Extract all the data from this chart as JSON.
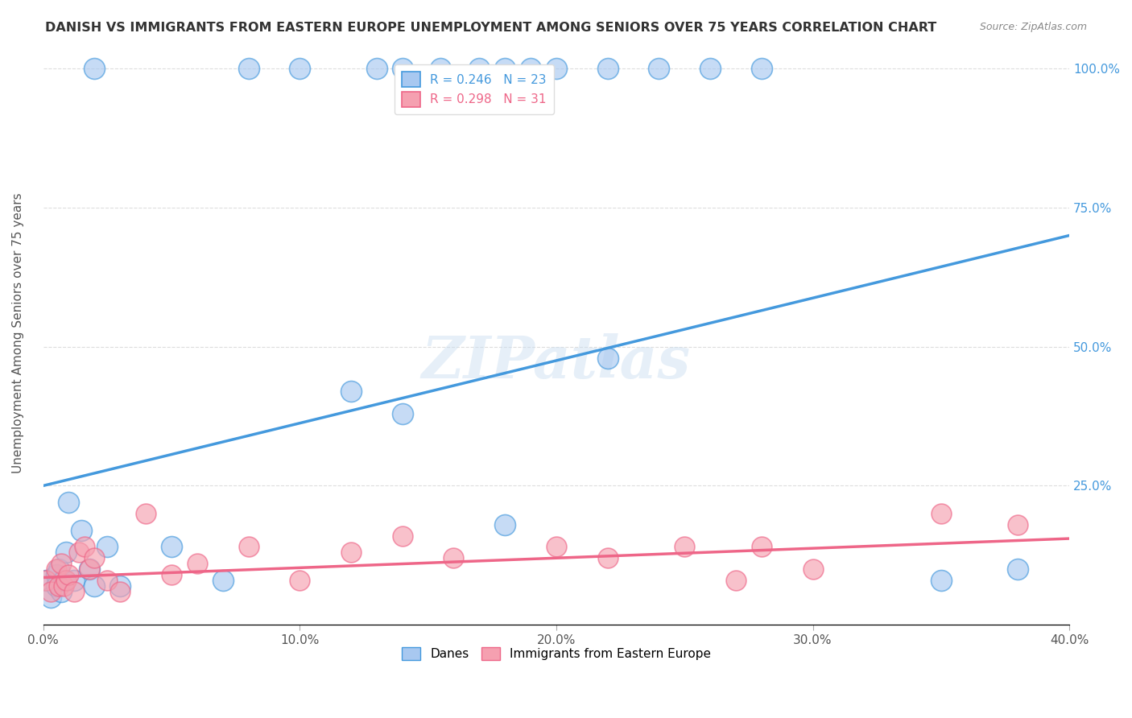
{
  "title": "DANISH VS IMMIGRANTS FROM EASTERN EUROPE UNEMPLOYMENT AMONG SENIORS OVER 75 YEARS CORRELATION CHART",
  "source": "Source: ZipAtlas.com",
  "ylabel": "Unemployment Among Seniors over 75 years",
  "x_ticks": [
    0.0,
    0.1,
    0.2,
    0.3,
    0.4
  ],
  "x_tick_labels": [
    "0.0%",
    "10.0%",
    "20.0%",
    "30.0%",
    "40.0%"
  ],
  "y_ticks": [
    0.0,
    0.25,
    0.5,
    0.75,
    1.0
  ],
  "y_tick_labels_right": [
    "",
    "25.0%",
    "50.0%",
    "75.0%",
    "100.0%"
  ],
  "xlim": [
    0.0,
    0.4
  ],
  "ylim": [
    0.0,
    1.05
  ],
  "danes_R": 0.246,
  "danes_N": 23,
  "immigrants_R": 0.298,
  "immigrants_N": 31,
  "danes_color": "#a8c8f0",
  "danes_line_color": "#4499dd",
  "immigrants_color": "#f5a0b0",
  "immigrants_line_color": "#ee6688",
  "danes_x": [
    0.001,
    0.003,
    0.005,
    0.005,
    0.006,
    0.007,
    0.008,
    0.009,
    0.01,
    0.012,
    0.015,
    0.018,
    0.02,
    0.025,
    0.03,
    0.05,
    0.07,
    0.12,
    0.14,
    0.18,
    0.22,
    0.35,
    0.38
  ],
  "danes_y": [
    0.08,
    0.05,
    0.09,
    0.07,
    0.1,
    0.06,
    0.08,
    0.13,
    0.22,
    0.08,
    0.17,
    0.1,
    0.07,
    0.14,
    0.07,
    0.14,
    0.08,
    0.42,
    0.38,
    0.18,
    0.48,
    0.08,
    0.1
  ],
  "danes_y_top": [
    1.0,
    1.0,
    1.0,
    1.0,
    1.0,
    1.0,
    1.0,
    1.0,
    1.0,
    1.0,
    1.0,
    1.0,
    1.0,
    1.0
  ],
  "danes_x_top": [
    0.02,
    0.08,
    0.1,
    0.13,
    0.14,
    0.155,
    0.17,
    0.18,
    0.19,
    0.2,
    0.22,
    0.24,
    0.26,
    0.28
  ],
  "immigrants_x": [
    0.001,
    0.003,
    0.005,
    0.006,
    0.007,
    0.008,
    0.009,
    0.01,
    0.012,
    0.014,
    0.016,
    0.018,
    0.02,
    0.025,
    0.03,
    0.04,
    0.05,
    0.06,
    0.08,
    0.1,
    0.12,
    0.14,
    0.16,
    0.2,
    0.22,
    0.25,
    0.27,
    0.28,
    0.3,
    0.35,
    0.38
  ],
  "immigrants_y": [
    0.08,
    0.06,
    0.1,
    0.07,
    0.11,
    0.07,
    0.08,
    0.09,
    0.06,
    0.13,
    0.14,
    0.1,
    0.12,
    0.08,
    0.06,
    0.2,
    0.09,
    0.11,
    0.14,
    0.08,
    0.13,
    0.16,
    0.12,
    0.14,
    0.12,
    0.14,
    0.08,
    0.14,
    0.1,
    0.2,
    0.18
  ],
  "danes_trend_x": [
    0.0,
    0.4
  ],
  "danes_trend_y": [
    0.25,
    0.7
  ],
  "immigrants_trend_x": [
    0.0,
    0.4
  ],
  "immigrants_trend_y": [
    0.085,
    0.155
  ],
  "watermark": "ZIPatlas",
  "background_color": "#ffffff",
  "grid_color": "#dddddd"
}
